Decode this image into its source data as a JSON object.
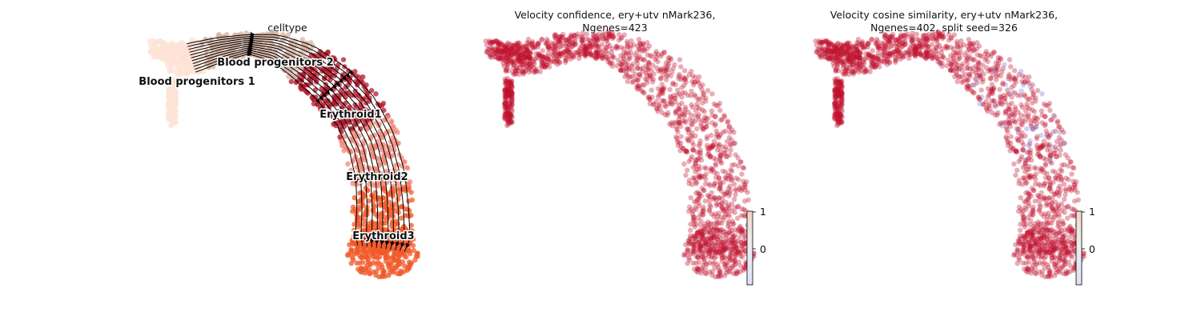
{
  "chart_data": [
    {
      "type": "scatter",
      "title": "celltype",
      "description_type": "umap_with_velocity_streams",
      "clusters": [
        {
          "name": "Blood progenitors 1",
          "color": "#fce3d6"
        },
        {
          "name": "Blood progenitors 2",
          "color": "#d7b3a4"
        },
        {
          "name": "Erythroid1",
          "color": "#b2182b"
        },
        {
          "name": "Erythroid2",
          "color": "#f08a7a"
        },
        {
          "name": "Erythroid3",
          "color": "#f15a2a"
        }
      ],
      "stream_color": "#000000"
    },
    {
      "type": "scatter",
      "title_lines": [
        "Velocity confidence, ery+utv nMark236,",
        "Ngenes=423"
      ],
      "point_color": "#c0112e",
      "colorbar": {
        "ticks": [
          "1",
          "0"
        ],
        "cmap": "coolwarm",
        "low_color": "#3b4cc0",
        "high_color": "#b40426"
      }
    },
    {
      "type": "scatter",
      "title_lines": [
        "Velocity cosine similarity, ery+utv nMark236,",
        "Ngenes=402, split seed=326"
      ],
      "point_color": "#c0112e",
      "outlier_color": "#6f7fe0",
      "colorbar": {
        "ticks": [
          "1",
          "0"
        ],
        "cmap": "coolwarm",
        "low_color": "#3b4cc0",
        "high_color": "#b40426"
      }
    }
  ]
}
